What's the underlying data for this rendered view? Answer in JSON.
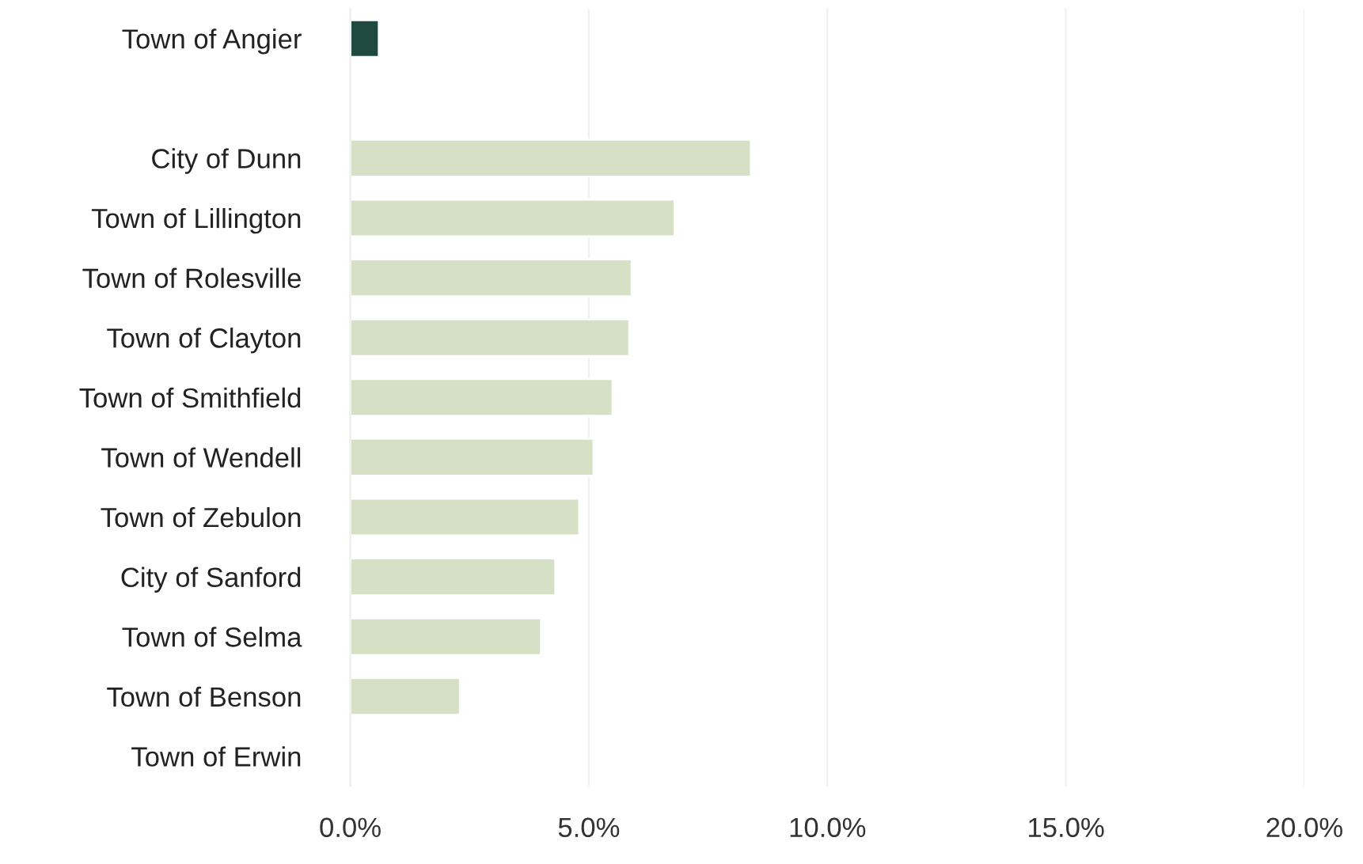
{
  "chart_data": {
    "type": "bar",
    "orientation": "horizontal",
    "categories": [
      "Town of Angier",
      null,
      "City of Dunn",
      "Town of Lillington",
      "Town of Rolesville",
      "Town of Clayton",
      "Town of Smithfield",
      "Town of Wendell",
      "Town of Zebulon",
      "City of Sanford",
      "Town of Selma",
      "Town of Benson",
      "Town of Erwin"
    ],
    "values": [
      0.6,
      null,
      8.4,
      6.8,
      5.9,
      5.85,
      5.5,
      5.1,
      4.8,
      4.3,
      4.0,
      2.3,
      null
    ],
    "colors": [
      "#1e4a40",
      "#d5e0c4",
      "#d5e0c4",
      "#d5e0c4",
      "#d5e0c4",
      "#d5e0c4",
      "#d5e0c4",
      "#d5e0c4",
      "#d5e0c4",
      "#d5e0c4",
      "#d5e0c4",
      "#d5e0c4",
      "#d5e0c4"
    ],
    "xlim": [
      0,
      20
    ],
    "xticks": [
      {
        "value": 0,
        "label": "0.0%"
      },
      {
        "value": 5,
        "label": "5.0%"
      },
      {
        "value": 10,
        "label": "10.0%"
      },
      {
        "value": 15,
        "label": "15.0%"
      },
      {
        "value": 20,
        "label": "20.0%"
      }
    ],
    "grid": "x"
  }
}
